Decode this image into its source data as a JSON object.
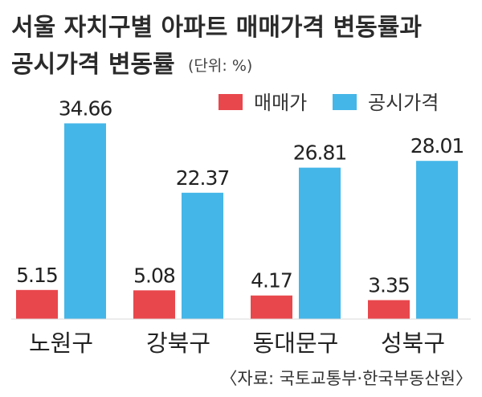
{
  "header": {
    "title_line1": "서울 자치구별 아파트 매매가격 변동률과",
    "title_line2": "공시가격 변동률",
    "unit": "(단위: %)"
  },
  "legend": {
    "items": [
      {
        "label": "매매가",
        "color": "#e8474c"
      },
      {
        "label": "공시가격",
        "color": "#45b6e8"
      }
    ]
  },
  "footer": {
    "source": "〈자료: 국토교통부·한국부동산원〉"
  },
  "chart_data": {
    "type": "bar",
    "title": "서울 자치구별 아파트 매매가격 변동률과 공시가격 변동률",
    "unit": "(단위: %)",
    "categories": [
      "노원구",
      "강북구",
      "동대문구",
      "성북구"
    ],
    "series": [
      {
        "name": "매매가",
        "color": "#e8474c",
        "values": [
          5.15,
          5.08,
          4.17,
          3.35
        ],
        "labels": [
          "5.15",
          "5.08",
          "4.17",
          "3.35"
        ]
      },
      {
        "name": "공시가격",
        "color": "#45b6e8",
        "values": [
          34.66,
          22.37,
          26.81,
          28.01
        ],
        "labels": [
          "34.66",
          "22.37",
          "26.81",
          "28.01"
        ]
      }
    ],
    "ylim": [
      0,
      38
    ],
    "grid": false,
    "legend_position": "top-right",
    "source": "〈자료: 국토교통부·한국부동산원〉"
  }
}
